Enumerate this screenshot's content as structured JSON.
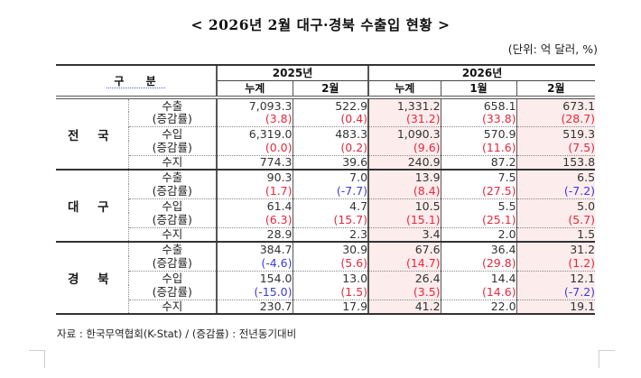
{
  "document": {
    "title": "< 2026년 2월 대구·경북 수출입 현황 >",
    "unit": "(단위: 억 달러, %)",
    "note": "자료 : 한국무역협회(K-Stat) / (증감률) : 전년동기대비"
  },
  "table": {
    "gubun_label": "구 분",
    "year_headers": [
      "2025년",
      "2026년"
    ],
    "col_headers": [
      "누계",
      "2월",
      "누계",
      "1월",
      "2월"
    ],
    "row_labels": [
      "수출",
      "(증감률)",
      "수입",
      "(증감률)",
      "수지"
    ],
    "regions": [
      {
        "name": "전 국",
        "rows": [
          [
            "7,093.3",
            "522.9",
            "1,331.2",
            "658.1",
            "673.1"
          ],
          [
            "(3.8)",
            "(0.4)",
            "(31.2)",
            "(33.8)",
            "(28.7)"
          ],
          [
            "6,319.0",
            "483.3",
            "1,090.3",
            "570.9",
            "519.3"
          ],
          [
            "(0.0)",
            "(0.2)",
            "(9.6)",
            "(11.6)",
            "(7.5)"
          ],
          [
            "774.3",
            "39.6",
            "240.9",
            "87.2",
            "153.8"
          ]
        ]
      },
      {
        "name": "대 구",
        "rows": [
          [
            "90.3",
            "7.0",
            "13.9",
            "7.5",
            "6.5"
          ],
          [
            "(1.7)",
            "(-7.7)",
            "(8.4)",
            "(27.5)",
            "(-7.2)"
          ],
          [
            "61.4",
            "4.7",
            "10.5",
            "5.5",
            "5.0"
          ],
          [
            "(6.3)",
            "(15.7)",
            "(15.1)",
            "(25.1)",
            "(5.7)"
          ],
          [
            "28.9",
            "2.3",
            "3.4",
            "2.0",
            "1.5"
          ]
        ]
      },
      {
        "name": "경 북",
        "rows": [
          [
            "384.7",
            "30.9",
            "67.6",
            "36.4",
            "31.2"
          ],
          [
            "(-4.6)",
            "(5.6)",
            "(14.7)",
            "(29.8)",
            "(1.2)"
          ],
          [
            "154.0",
            "13.0",
            "26.4",
            "14.4",
            "12.1"
          ],
          [
            "(-15.0)",
            "(1.5)",
            "(3.5)",
            "(14.6)",
            "(-7.2)"
          ],
          [
            "230.7",
            "17.9",
            "41.2",
            "22.0",
            "19.1"
          ]
        ]
      }
    ]
  },
  "colors": {
    "positive_rate": "#e8283c",
    "negative_rate": "#3a3ae0",
    "highlight_bg": "#fcecec"
  }
}
